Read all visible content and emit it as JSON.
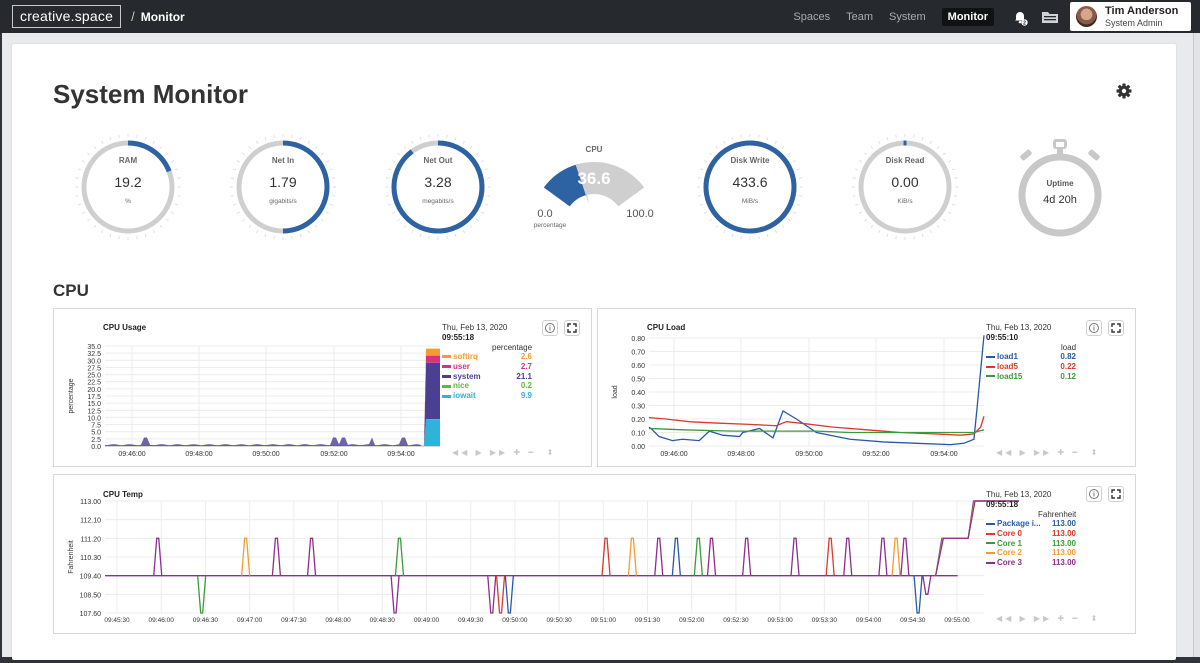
{
  "topbar": {
    "logo": "creative.space",
    "separator": "/",
    "breadcrumb": "Monitor",
    "nav": [
      {
        "label": "Spaces",
        "active": false
      },
      {
        "label": "Team",
        "active": false
      },
      {
        "label": "System",
        "active": false
      },
      {
        "label": "Monitor",
        "active": true
      }
    ],
    "notification_count": "2",
    "user": {
      "name": "Tim Anderson",
      "role": "System Admin"
    }
  },
  "page": {
    "title": "System Monitor",
    "cpu_section": "CPU"
  },
  "gauges": {
    "ram": {
      "label": "RAM",
      "value": "19.2",
      "unit": "%",
      "fraction": 0.192
    },
    "net_in": {
      "label": "Net In",
      "value": "1.79",
      "unit": "gigabits/s",
      "fraction": 0.5
    },
    "net_out": {
      "label": "Net Out",
      "value": "3.28",
      "unit": "megabits/s",
      "fraction": 0.9
    },
    "cpu": {
      "label": "CPU",
      "value": "36.6",
      "min": "0.0",
      "max": "100.0",
      "unit": "percentage",
      "fraction": 0.366
    },
    "disk_write": {
      "label": "Disk Write",
      "value": "433.6",
      "unit": "MiB/s",
      "fraction": 1.0
    },
    "disk_read": {
      "label": "Disk Read",
      "value": "0.00",
      "unit": "KiB/s",
      "fraction": 0.0
    },
    "uptime": {
      "label": "Uptime",
      "value": "4d 20h"
    }
  },
  "colors": {
    "accent": "#2d63a3",
    "track": "#cfcfcf",
    "softirq": "#f39c34",
    "user": "#d6337f",
    "system": "#4a3f91",
    "nice": "#5cb83e",
    "iowait": "#2fb3d6",
    "load1": "#2859a8",
    "load5": "#d93a2b",
    "load15": "#3b9a3b"
  },
  "chart_data": [
    {
      "type": "area",
      "title": "CPU Usage",
      "ylabel": "percentage",
      "ylim": [
        0,
        37.5
      ],
      "yticks": [
        "0.0",
        "2.5",
        "5.0",
        "7.5",
        "10.0",
        "12.5",
        "15.0",
        "17.5",
        "20.0",
        "22.5",
        "25.0",
        "27.5",
        "30.0",
        "32.5",
        "35.0"
      ],
      "xticks": [
        "09:46:00",
        "09:48:00",
        "09:50:00",
        "09:52:00",
        "09:54:00"
      ],
      "legend": {
        "date": "Thu, Feb 13, 2020",
        "time": "09:55:18",
        "unit": "percentage",
        "series": [
          {
            "name": "softirq",
            "value": "2.6"
          },
          {
            "name": "user",
            "value": "2.7"
          },
          {
            "name": "system",
            "value": "21.1"
          },
          {
            "name": "nice",
            "value": "0.2"
          },
          {
            "name": "iowait",
            "value": "9.9"
          }
        ]
      },
      "spike": {
        "iowait": 9.9,
        "system": 21.1,
        "user": 2.7,
        "softirq": 2.6,
        "nice": 0.2
      }
    },
    {
      "type": "line",
      "title": "CPU Load",
      "ylabel": "load",
      "ylim": [
        0,
        0.8
      ],
      "yticks": [
        "0.00",
        "0.10",
        "0.20",
        "0.30",
        "0.40",
        "0.50",
        "0.60",
        "0.70",
        "0.80"
      ],
      "xticks": [
        "09:46:00",
        "09:48:00",
        "09:50:00",
        "09:52:00",
        "09:54:00"
      ],
      "legend": {
        "date": "Thu, Feb 13, 2020",
        "time": "09:55:10",
        "unit": "load",
        "series": [
          {
            "name": "load1",
            "value": "0.82"
          },
          {
            "name": "load5",
            "value": "0.22"
          },
          {
            "name": "load15",
            "value": "0.12"
          }
        ]
      },
      "series": [
        {
          "name": "load1",
          "points": [
            [
              0,
              0.14
            ],
            [
              1,
              0.12
            ],
            [
              3,
              0.07
            ],
            [
              7,
              0.04
            ],
            [
              10,
              0.05
            ],
            [
              15,
              0.04
            ],
            [
              18,
              0.11
            ],
            [
              22,
              0.08
            ],
            [
              27,
              0.07
            ],
            [
              28,
              0.1
            ],
            [
              33,
              0.13
            ],
            [
              37,
              0.06
            ],
            [
              40,
              0.26
            ],
            [
              44,
              0.2
            ],
            [
              50,
              0.1
            ],
            [
              60,
              0.05
            ],
            [
              70,
              0.03
            ],
            [
              80,
              0.02
            ],
            [
              90,
              0.01
            ],
            [
              94,
              0.02
            ],
            [
              97,
              0.05
            ],
            [
              98,
              0.3
            ],
            [
              100,
              0.82
            ]
          ]
        },
        {
          "name": "load5",
          "points": [
            [
              0,
              0.21
            ],
            [
              5,
              0.2
            ],
            [
              12,
              0.18
            ],
            [
              20,
              0.17
            ],
            [
              30,
              0.16
            ],
            [
              38,
              0.15
            ],
            [
              41,
              0.18
            ],
            [
              45,
              0.17
            ],
            [
              55,
              0.14
            ],
            [
              65,
              0.12
            ],
            [
              75,
              0.1
            ],
            [
              85,
              0.09
            ],
            [
              93,
              0.08
            ],
            [
              97,
              0.09
            ],
            [
              99,
              0.14
            ],
            [
              100,
              0.22
            ]
          ]
        },
        {
          "name": "load15",
          "points": [
            [
              0,
              0.13
            ],
            [
              10,
              0.12
            ],
            [
              25,
              0.11
            ],
            [
              40,
              0.11
            ],
            [
              50,
              0.11
            ],
            [
              60,
              0.1
            ],
            [
              75,
              0.1
            ],
            [
              90,
              0.1
            ],
            [
              97,
              0.1
            ],
            [
              100,
              0.12
            ]
          ]
        }
      ]
    },
    {
      "type": "line",
      "title": "CPU Temp",
      "ylabel": "Fahrenheit",
      "ylim": [
        107.6,
        113.0
      ],
      "yticks": [
        "107.60",
        "108.50",
        "109.40",
        "110.30",
        "111.20",
        "112.10",
        "113.00"
      ],
      "xticks": [
        "09:45:30",
        "09:46:00",
        "09:46:30",
        "09:47:00",
        "09:47:30",
        "09:48:00",
        "09:48:30",
        "09:49:00",
        "09:49:30",
        "09:50:00",
        "09:50:30",
        "09:51:00",
        "09:51:30",
        "09:52:00",
        "09:52:30",
        "09:53:00",
        "09:53:30",
        "09:54:00",
        "09:54:30",
        "09:55:00"
      ],
      "legend": {
        "date": "Thu, Feb 13, 2020",
        "time": "09:55:18",
        "unit": "Fahrenheit",
        "series": [
          {
            "name": "Package i...",
            "value": "113.00"
          },
          {
            "name": "Core 0",
            "value": "113.00"
          },
          {
            "name": "Core 1",
            "value": "113.00"
          },
          {
            "name": "Core 2",
            "value": "113.00"
          },
          {
            "name": "Core 3",
            "value": "113.00"
          }
        ]
      },
      "baseline": 109.4,
      "spikes": [
        {
          "t": 6,
          "v": 111.2,
          "c": 4
        },
        {
          "t": 11,
          "v": 107.6,
          "c": 2
        },
        {
          "t": 16,
          "v": 111.2,
          "c": 3
        },
        {
          "t": 19.5,
          "v": 111.2,
          "c": 4
        },
        {
          "t": 23.5,
          "v": 111.2,
          "c": 4
        },
        {
          "t": 33.5,
          "v": 111.2,
          "c": 2
        },
        {
          "t": 33,
          "v": 107.6,
          "c": 4
        },
        {
          "t": 44,
          "v": 107.6,
          "c": 4
        },
        {
          "t": 45,
          "v": 107.6,
          "c": 1
        },
        {
          "t": 46,
          "v": 107.6,
          "c": 0
        },
        {
          "t": 57,
          "v": 111.2,
          "c": 1
        },
        {
          "t": 60,
          "v": 111.2,
          "c": 3
        },
        {
          "t": 63,
          "v": 111.2,
          "c": 4
        },
        {
          "t": 65,
          "v": 111.2,
          "c": 0
        },
        {
          "t": 67.5,
          "v": 111.2,
          "c": 2
        },
        {
          "t": 69,
          "v": 111.2,
          "c": 4
        },
        {
          "t": 73,
          "v": 111.2,
          "c": 4
        },
        {
          "t": 78.5,
          "v": 111.2,
          "c": 4
        },
        {
          "t": 82.5,
          "v": 111.2,
          "c": 1
        },
        {
          "t": 84.5,
          "v": 111.2,
          "c": 4
        },
        {
          "t": 88.5,
          "v": 111.2,
          "c": 4
        },
        {
          "t": 90,
          "v": 111.2,
          "c": 3
        },
        {
          "t": 91,
          "v": 111.2,
          "c": 4
        },
        {
          "t": 92.5,
          "v": 107.6,
          "c": 0
        },
        {
          "t": 93.5,
          "v": 108.5,
          "c": 4
        }
      ],
      "end_series": [
        0,
        1,
        2,
        3,
        4
      ]
    }
  ]
}
